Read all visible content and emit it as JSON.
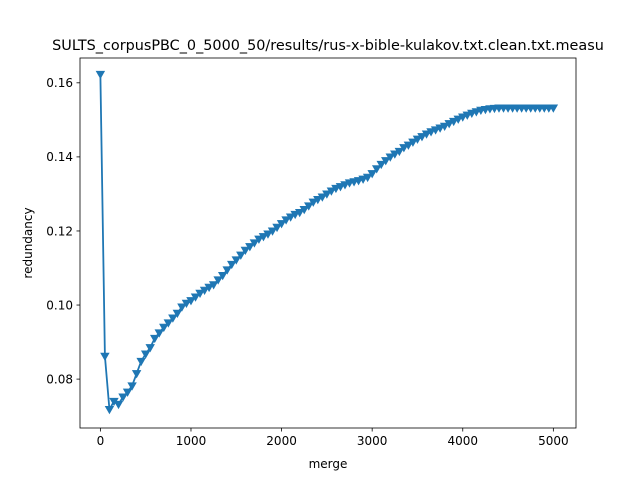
{
  "chart_data": {
    "type": "line",
    "title": "SULTS_corpusPBC_0_5000_50/results/rus-x-bible-kulakov.txt.clean.txt.measu",
    "xlabel": "merge",
    "ylabel": "redundancy",
    "xlim": [
      -225,
      5250
    ],
    "ylim": [
      0.0668,
      0.1667
    ],
    "xticks": [
      0,
      1000,
      2000,
      3000,
      4000,
      5000
    ],
    "xtick_labels": [
      "0",
      "1000",
      "2000",
      "3000",
      "4000",
      "5000"
    ],
    "yticks": [
      0.08,
      0.1,
      0.12,
      0.14,
      0.16
    ],
    "ytick_labels": [
      "0.08",
      "0.10",
      "0.12",
      "0.14",
      "0.16"
    ],
    "grid": false,
    "marker": "triangle-down",
    "line_color": "#1f77b4",
    "series": [
      {
        "x": [
          0,
          50,
          100,
          150,
          200,
          250,
          300,
          350,
          400,
          450,
          500,
          550,
          600,
          650,
          700,
          750,
          800,
          850,
          900,
          950,
          1000,
          1050,
          1100,
          1150,
          1200,
          1250,
          1300,
          1350,
          1400,
          1450,
          1500,
          1550,
          1600,
          1650,
          1700,
          1750,
          1800,
          1850,
          1900,
          1950,
          2000,
          2050,
          2100,
          2150,
          2200,
          2250,
          2300,
          2350,
          2400,
          2450,
          2500,
          2550,
          2600,
          2650,
          2700,
          2750,
          2800,
          2850,
          2900,
          2950,
          3000,
          3050,
          3100,
          3150,
          3200,
          3250,
          3300,
          3350,
          3400,
          3450,
          3500,
          3550,
          3600,
          3650,
          3700,
          3750,
          3800,
          3850,
          3900,
          3950,
          4000,
          4050,
          4100,
          4150,
          4200,
          4250,
          4300,
          4350,
          4400,
          4450,
          4500,
          4550,
          4600,
          4650,
          4700,
          4750,
          4800,
          4850,
          4900,
          4950,
          5000
        ],
        "y": [
          0.1623,
          0.0862,
          0.0718,
          0.074,
          0.0732,
          0.0752,
          0.0765,
          0.0782,
          0.0815,
          0.0848,
          0.0868,
          0.0885,
          0.091,
          0.0925,
          0.094,
          0.0952,
          0.0965,
          0.0978,
          0.0995,
          0.1005,
          0.1012,
          0.1022,
          0.1032,
          0.104,
          0.1048,
          0.1055,
          0.1068,
          0.108,
          0.1095,
          0.111,
          0.1122,
          0.1135,
          0.1148,
          0.1158,
          0.1168,
          0.1178,
          0.1185,
          0.1192,
          0.12,
          0.121,
          0.122,
          0.123,
          0.1238,
          0.1245,
          0.125,
          0.1258,
          0.1268,
          0.1278,
          0.1285,
          0.1292,
          0.13,
          0.1308,
          0.1315,
          0.132,
          0.1325,
          0.133,
          0.1333,
          0.1336,
          0.134,
          0.1345,
          0.1355,
          0.1368,
          0.138,
          0.139,
          0.14,
          0.1408,
          0.1415,
          0.1425,
          0.1432,
          0.144,
          0.1448,
          0.1455,
          0.1462,
          0.1468,
          0.1473,
          0.1478,
          0.1483,
          0.149,
          0.1496,
          0.1502,
          0.1508,
          0.1513,
          0.1518,
          0.1522,
          0.1526,
          0.1528,
          0.153,
          0.1531,
          0.1532,
          0.1532,
          0.1532,
          0.1532,
          0.1532,
          0.1532,
          0.1532,
          0.1532,
          0.1532,
          0.1532,
          0.1532,
          0.1532,
          0.1532
        ]
      }
    ]
  }
}
